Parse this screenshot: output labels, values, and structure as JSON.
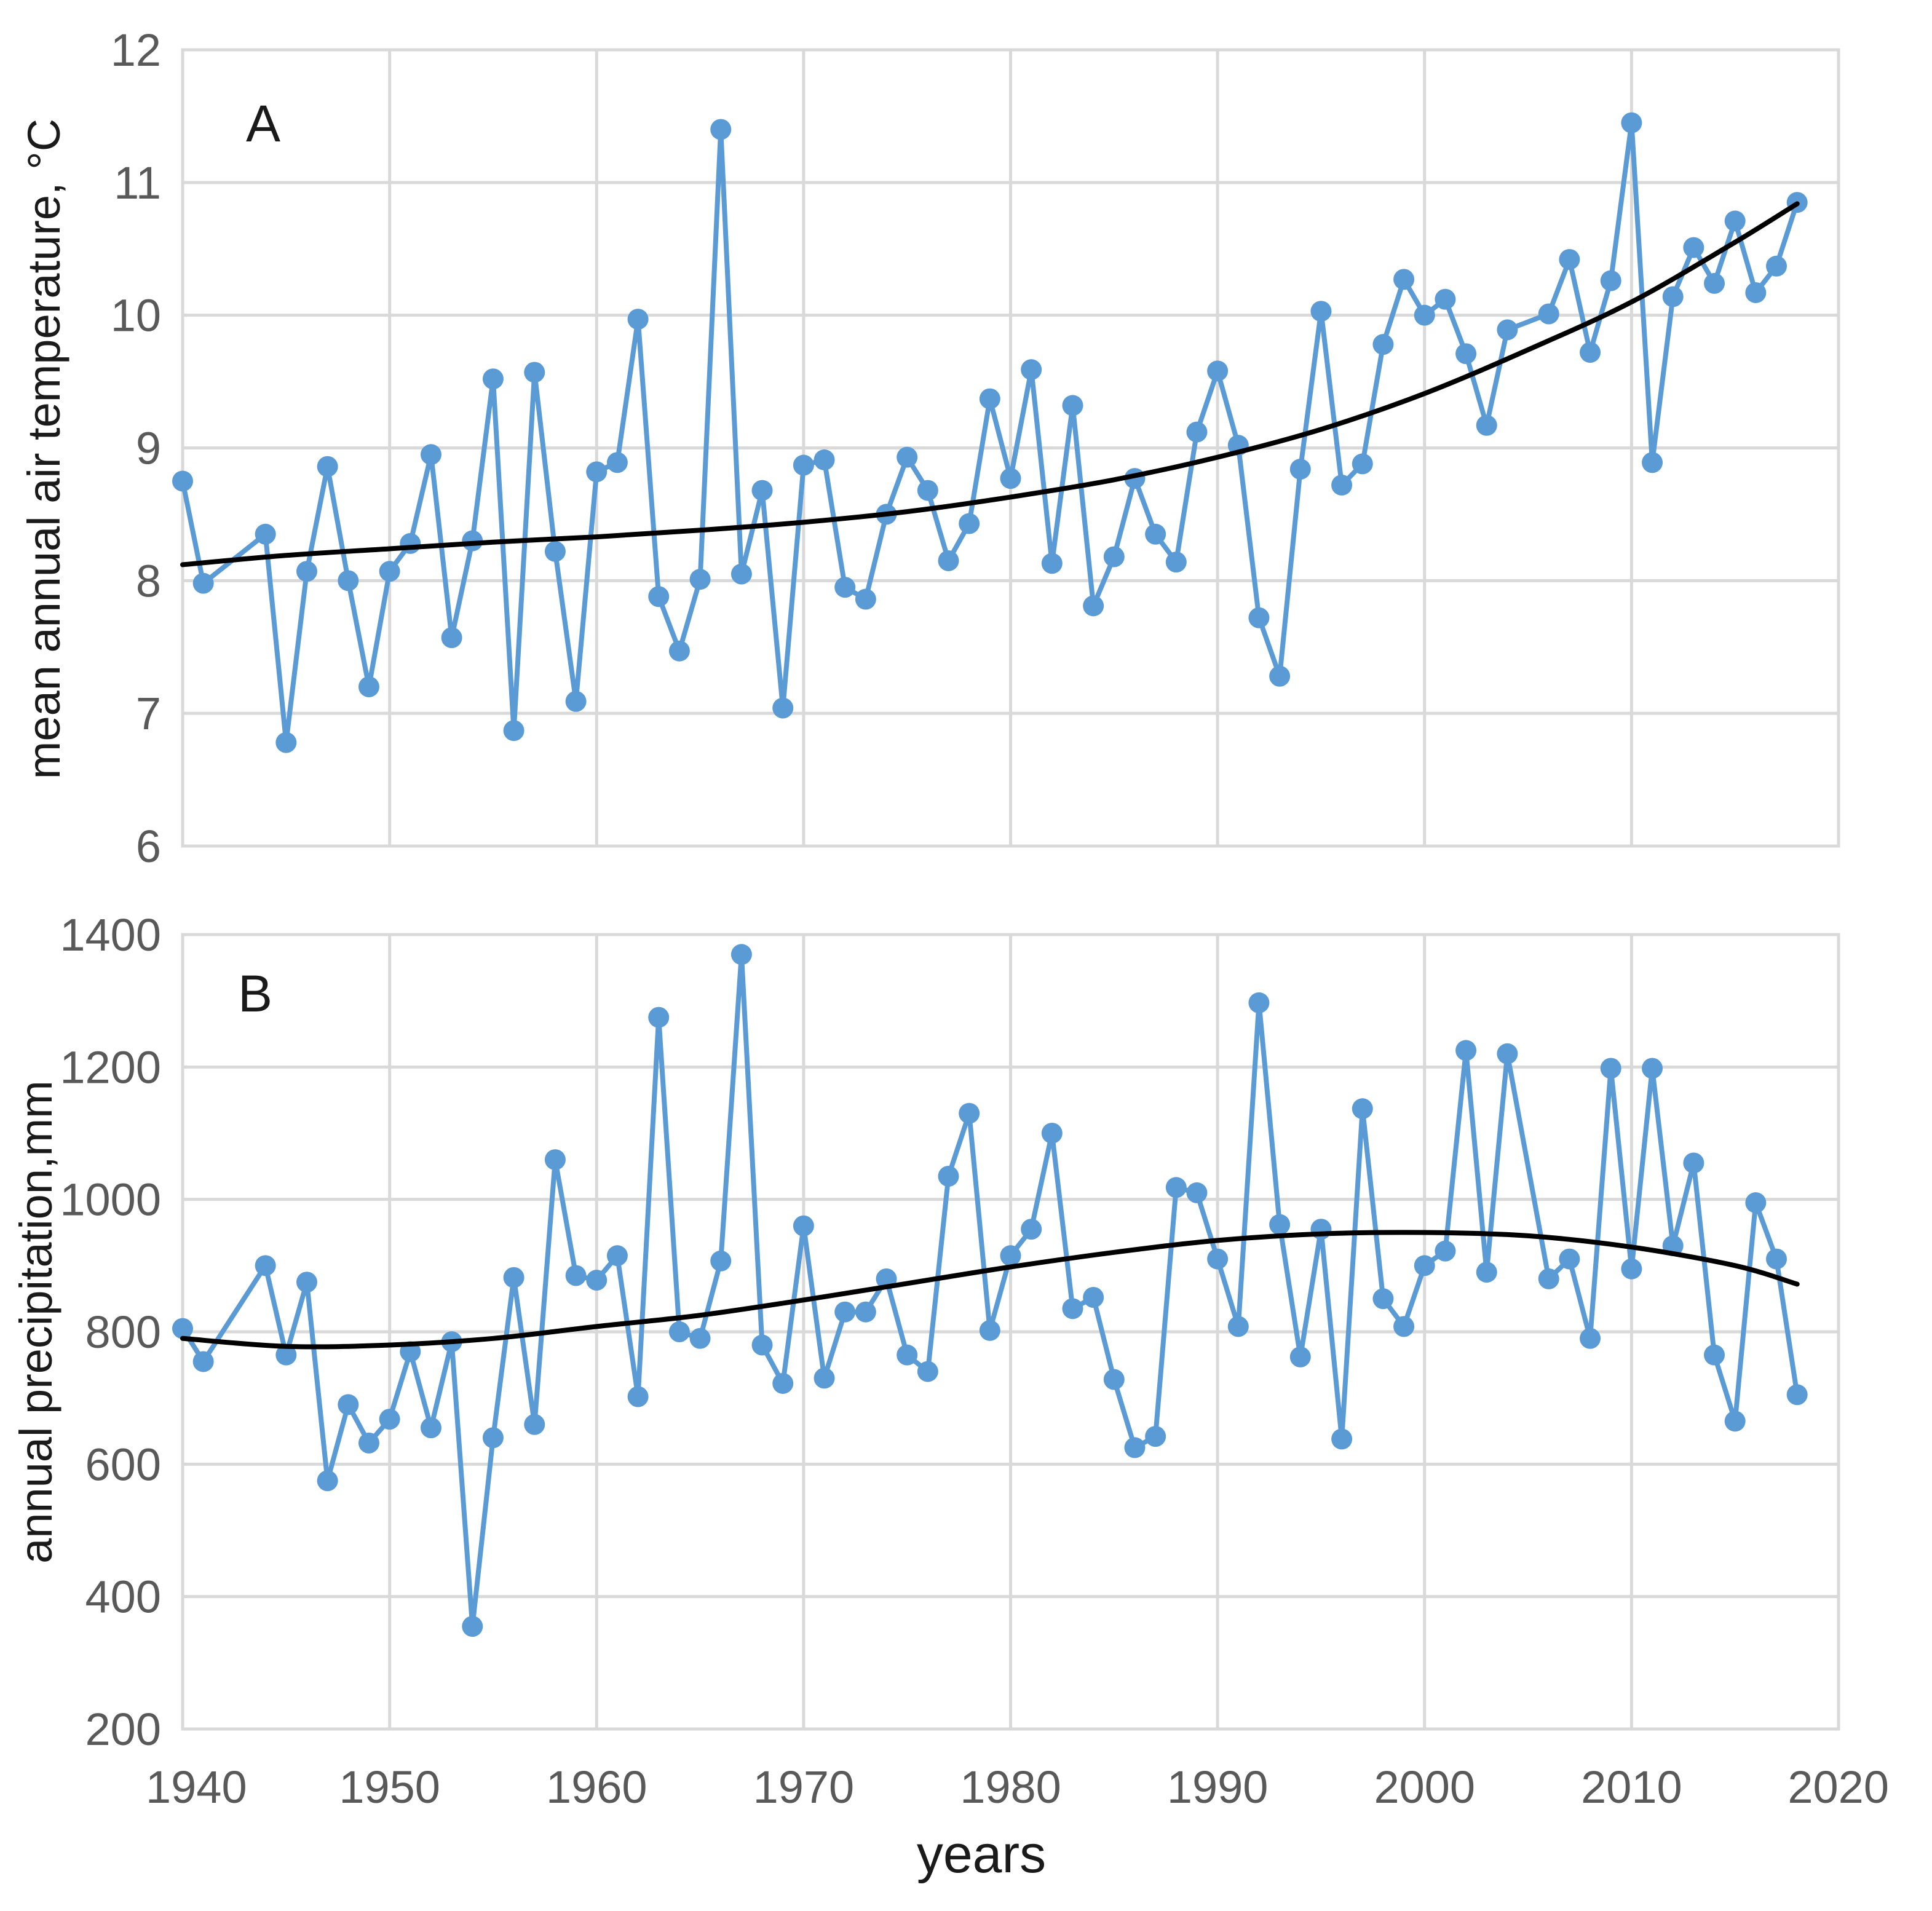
{
  "chart_data": [
    {
      "type": "line",
      "panel": "A",
      "ylabel": "mean annual air temperature, °C",
      "xlabel": "",
      "xlim": [
        1940,
        2020
      ],
      "ylim": [
        6,
        12
      ],
      "x_ticks": [
        1940,
        1950,
        1960,
        1970,
        1980,
        1990,
        2000,
        2010,
        2020
      ],
      "y_ticks": [
        6,
        7,
        8,
        9,
        10,
        11,
        12
      ],
      "x_tick_labels_visible": false,
      "series": [
        {
          "name": "mean annual air temperature",
          "x": [
            1940,
            1941,
            1944,
            1945,
            1946,
            1947,
            1948,
            1949,
            1950,
            1951,
            1952,
            1953,
            1954,
            1955,
            1956,
            1957,
            1958,
            1959,
            1960,
            1961,
            1962,
            1963,
            1964,
            1965,
            1966,
            1967,
            1968,
            1969,
            1970,
            1971,
            1972,
            1973,
            1974,
            1975,
            1976,
            1977,
            1978,
            1979,
            1980,
            1981,
            1982,
            1983,
            1984,
            1985,
            1986,
            1987,
            1988,
            1989,
            1990,
            1991,
            1992,
            1993,
            1994,
            1995,
            1996,
            1997,
            1998,
            1999,
            2000,
            2001,
            2002,
            2003,
            2004,
            2006,
            2007,
            2008,
            2009,
            2010,
            2011,
            2012,
            2013,
            2014,
            2015,
            2016,
            2017,
            2018
          ],
          "y": [
            8.75,
            7.98,
            8.35,
            6.78,
            8.07,
            8.86,
            8.0,
            7.2,
            8.07,
            8.28,
            8.95,
            7.57,
            8.3,
            9.52,
            6.87,
            9.57,
            8.22,
            7.09,
            8.82,
            8.89,
            9.97,
            7.88,
            7.47,
            8.01,
            11.4,
            8.05,
            8.68,
            7.04,
            8.87,
            8.91,
            7.95,
            7.86,
            8.5,
            8.93,
            8.68,
            8.15,
            8.43,
            9.37,
            8.77,
            9.59,
            8.13,
            9.32,
            7.81,
            8.18,
            8.77,
            8.35,
            8.14,
            9.12,
            9.58,
            9.02,
            7.72,
            7.28,
            8.84,
            10.03,
            8.72,
            8.88,
            9.78,
            10.27,
            10.0,
            10.12,
            9.71,
            9.17,
            9.89,
            10.01,
            10.42,
            9.72,
            10.26,
            11.45,
            8.89,
            10.14,
            10.51,
            10.24,
            10.71,
            10.17,
            10.37,
            10.85
          ]
        },
        {
          "name": "trend",
          "x": [
            1940,
            1945,
            1950,
            1955,
            1960,
            1965,
            1970,
            1975,
            1980,
            1985,
            1990,
            1995,
            2000,
            2005,
            2010,
            2015,
            2018
          ],
          "y": [
            8.12,
            8.19,
            8.24,
            8.29,
            8.33,
            8.38,
            8.44,
            8.52,
            8.63,
            8.76,
            8.93,
            9.14,
            9.41,
            9.74,
            10.1,
            10.55,
            10.84
          ]
        }
      ]
    },
    {
      "type": "line",
      "panel": "B",
      "ylabel": "annual precipitation,mm",
      "xlabel": "years",
      "xlim": [
        1940,
        2020
      ],
      "ylim": [
        200,
        1400
      ],
      "x_ticks": [
        1940,
        1950,
        1960,
        1970,
        1980,
        1990,
        2000,
        2010,
        2020
      ],
      "y_ticks": [
        200,
        400,
        600,
        800,
        1000,
        1200,
        1400
      ],
      "x_tick_labels_visible": true,
      "series": [
        {
          "name": "annual precipitation",
          "x": [
            1940,
            1941,
            1944,
            1945,
            1946,
            1947,
            1948,
            1949,
            1950,
            1951,
            1952,
            1953,
            1954,
            1955,
            1956,
            1957,
            1958,
            1959,
            1960,
            1961,
            1962,
            1963,
            1964,
            1965,
            1966,
            1967,
            1968,
            1969,
            1970,
            1971,
            1972,
            1973,
            1974,
            1975,
            1976,
            1977,
            1978,
            1979,
            1980,
            1981,
            1982,
            1983,
            1984,
            1985,
            1986,
            1987,
            1988,
            1989,
            1990,
            1991,
            1992,
            1993,
            1994,
            1995,
            1996,
            1997,
            1998,
            1999,
            2000,
            2001,
            2002,
            2003,
            2004,
            2006,
            2007,
            2008,
            2009,
            2010,
            2011,
            2012,
            2013,
            2014,
            2015,
            2016,
            2017,
            2018
          ],
          "y": [
            805,
            755,
            900,
            765,
            875,
            575,
            690,
            632,
            668,
            770,
            655,
            785,
            355,
            640,
            882,
            660,
            1060,
            885,
            878,
            915,
            702,
            1275,
            800,
            790,
            907,
            1370,
            780,
            722,
            960,
            730,
            830,
            830,
            880,
            765,
            740,
            1035,
            1130,
            802,
            915,
            955,
            1100,
            835,
            852,
            728,
            625,
            642,
            1018,
            1010,
            910,
            808,
            1297,
            962,
            762,
            955,
            638,
            1137,
            850,
            808,
            900,
            922,
            1225,
            890,
            1220,
            880,
            910,
            790,
            1198,
            895,
            1198,
            930,
            1055,
            765,
            665,
            995,
            910,
            705
          ]
        },
        {
          "name": "trend",
          "x": [
            1940,
            1945,
            1950,
            1955,
            1960,
            1965,
            1970,
            1975,
            1980,
            1985,
            1990,
            1995,
            2000,
            2005,
            2010,
            2015,
            2018
          ],
          "y": [
            790,
            778,
            780,
            790,
            808,
            825,
            848,
            873,
            898,
            920,
            938,
            948,
            950,
            945,
            928,
            900,
            872
          ]
        }
      ]
    }
  ],
  "panel_labels": {
    "a": "A",
    "b": "B"
  },
  "axes": {
    "a": {
      "ylabel": "mean annual air temperature, °C",
      "y_tick_labels": [
        "6",
        "7",
        "8",
        "9",
        "10",
        "11",
        "12"
      ]
    },
    "b": {
      "ylabel": "annual precipitation,mm",
      "y_tick_labels": [
        "200",
        "400",
        "600",
        "800",
        "1000",
        "1200",
        "1400"
      ],
      "x_tick_labels": [
        "1940",
        "1950",
        "1960",
        "1970",
        "1980",
        "1990",
        "2000",
        "2010",
        "2020"
      ]
    },
    "xlabel": "years"
  },
  "colors": {
    "data_series": "#5b9bd5",
    "trend_line": "#000000",
    "gridlines": "#d9d9d9",
    "tick_labels": "#595959"
  }
}
